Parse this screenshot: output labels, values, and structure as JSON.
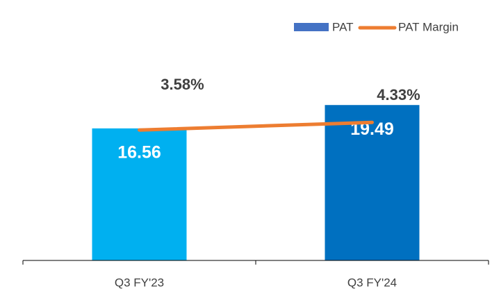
{
  "chart_data": {
    "type": "bar-line",
    "categories": [
      "Q3 FY'23",
      "Q3 FY'24"
    ],
    "series": [
      {
        "name": "PAT",
        "type": "bar",
        "color": "#4472c4",
        "colors": [
          "#00b0f0",
          "#0070c0"
        ],
        "values": [
          16.56,
          19.49
        ]
      },
      {
        "name": "PAT Margin",
        "type": "line",
        "axis": "y2",
        "color": "#ed7d31",
        "values": [
          3.58,
          4.33
        ],
        "value_labels": [
          "3.58%",
          "4.33%"
        ]
      }
    ],
    "ylim": [
      0,
      27
    ],
    "y2lim": [
      -9.2,
      11.9
    ],
    "legend": "top-right"
  }
}
